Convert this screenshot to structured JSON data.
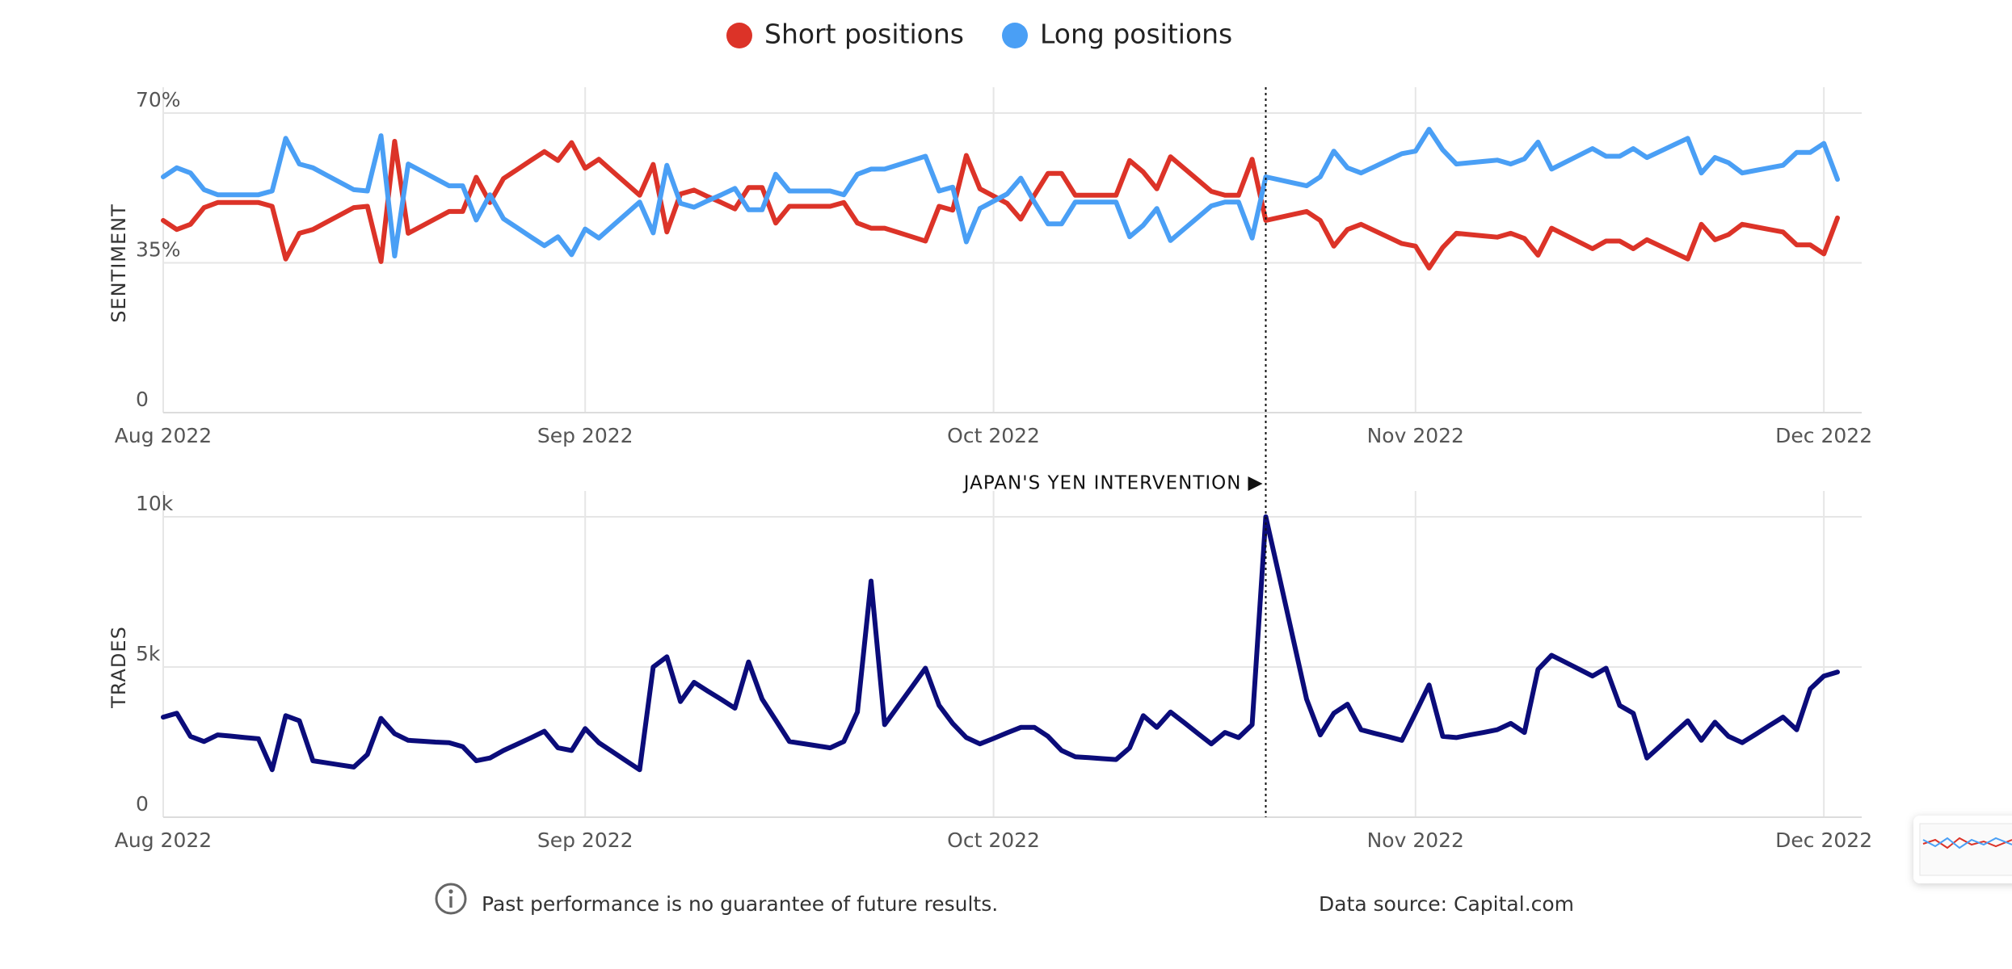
{
  "chart_data": [
    {
      "type": "line",
      "y_label": "SENTIMENT",
      "grid": true,
      "legend": "top",
      "categories": [
        "Aug 2022",
        null,
        null,
        null,
        null,
        null,
        null,
        null,
        null,
        null,
        null,
        null,
        null,
        null,
        null,
        null,
        null,
        null,
        null,
        null,
        null,
        null,
        null,
        null,
        null,
        null,
        null,
        null,
        null,
        null,
        null,
        "Sep 2022",
        null,
        null,
        null,
        null,
        null,
        null,
        null,
        null,
        null,
        null,
        null,
        null,
        null,
        null,
        null,
        null,
        null,
        null,
        null,
        null,
        null,
        null,
        null,
        null,
        null,
        null,
        null,
        null,
        null,
        "Oct 2022",
        null,
        null,
        null,
        null,
        null,
        null,
        null,
        null,
        null,
        null,
        null,
        null,
        null,
        null,
        null,
        null,
        null,
        null,
        null,
        null,
        null,
        null,
        null,
        null,
        null,
        null,
        null,
        null,
        null,
        null,
        "Nov 2022",
        null,
        null,
        null,
        null,
        null,
        null,
        null,
        null,
        null,
        null,
        null,
        null,
        null,
        null,
        null,
        null,
        null,
        null,
        null,
        null,
        null,
        null,
        null,
        null,
        null,
        null,
        null,
        null,
        null,
        "Dec 2022",
        null
      ],
      "series": [
        {
          "name": "Short positions",
          "color": "#dc3328",
          "values": [
            44.9,
            42.8,
            44.0,
            47.9,
            49.1,
            49.1,
            49.1,
            49.1,
            48.2,
            35.9,
            41.9,
            42.8,
            44.5,
            46.2,
            47.9,
            48.2,
            35.3,
            63.4,
            41.9,
            43.6,
            45.3,
            47.0,
            47.0,
            55.0,
            49.1,
            54.7,
            56.8,
            58.9,
            61.0,
            58.9,
            63.1,
            57.1,
            59.2,
            56.4,
            53.6,
            50.8,
            58.0,
            42.2,
            51.1,
            52.0,
            50.5,
            49.1,
            47.6,
            52.6,
            52.6,
            44.3,
            48.2,
            48.2,
            48.2,
            48.2,
            49.1,
            44.3,
            43.1,
            43.1,
            42.1,
            41.1,
            40.1,
            48.2,
            47.3,
            60.1,
            52.3,
            50.6,
            48.9,
            45.2,
            50.8,
            55.9,
            55.9,
            50.8,
            50.8,
            50.8,
            50.8,
            58.9,
            56.2,
            52.3,
            59.8,
            57.1,
            54.4,
            51.7,
            50.8,
            50.8,
            59.2,
            44.9,
            45.6,
            46.3,
            47.0,
            44.9,
            38.9,
            42.8,
            44.0,
            42.5,
            41.0,
            39.5,
            38.9,
            33.8,
            38.6,
            41.9,
            41.6,
            41.3,
            41.0,
            41.9,
            40.7,
            36.8,
            43.1,
            41.5,
            39.9,
            38.3,
            40.1,
            40.1,
            38.3,
            40.4,
            38.9,
            37.4,
            35.9,
            44.0,
            40.4,
            41.6,
            44.0,
            43.4,
            42.8,
            42.2,
            39.2,
            39.2,
            37.1,
            45.5
          ]
        },
        {
          "name": "Long positions",
          "color": "#4a9ff5",
          "values": [
            55.1,
            57.2,
            56.0,
            52.1,
            50.9,
            50.9,
            50.9,
            50.9,
            51.8,
            64.1,
            58.1,
            57.2,
            55.5,
            53.8,
            52.1,
            51.8,
            64.7,
            36.6,
            58.1,
            56.4,
            54.7,
            53.0,
            53.0,
            45.0,
            50.9,
            45.3,
            43.2,
            41.1,
            39.0,
            41.1,
            36.9,
            42.9,
            40.8,
            43.6,
            46.4,
            49.2,
            42.0,
            57.8,
            48.9,
            48.0,
            49.5,
            50.9,
            52.4,
            47.4,
            47.4,
            55.7,
            51.8,
            51.8,
            51.8,
            51.8,
            50.9,
            55.7,
            56.9,
            56.9,
            57.9,
            58.9,
            59.9,
            51.8,
            52.7,
            39.9,
            47.7,
            49.4,
            51.1,
            54.8,
            49.2,
            44.1,
            44.1,
            49.2,
            49.2,
            49.2,
            49.2,
            41.1,
            43.8,
            47.7,
            40.2,
            42.9,
            45.6,
            48.3,
            49.2,
            49.2,
            40.8,
            55.1,
            54.4,
            53.7,
            53.0,
            55.1,
            61.1,
            57.2,
            56.0,
            57.5,
            59.0,
            60.5,
            61.1,
            66.2,
            61.4,
            58.1,
            58.4,
            58.7,
            59.0,
            58.1,
            59.3,
            63.2,
            56.9,
            58.5,
            60.1,
            61.7,
            59.9,
            59.9,
            61.7,
            59.6,
            61.1,
            62.6,
            64.1,
            56.0,
            59.6,
            58.4,
            56.0,
            56.6,
            57.2,
            57.8,
            60.8,
            60.8,
            62.9,
            54.5
          ]
        }
      ],
      "ylim": [
        0,
        70
      ],
      "yticks": [
        0,
        {
          "value": 35,
          "label": "35%"
        },
        {
          "value": 70,
          "label": "70%"
        }
      ]
    },
    {
      "type": "line",
      "y_label": "TRADES",
      "grid": true,
      "annotation": "JAPAN'S YEN INTERVENTION",
      "categories": [
        "Aug 2022",
        null,
        null,
        null,
        null,
        null,
        null,
        null,
        null,
        null,
        null,
        null,
        null,
        null,
        null,
        null,
        null,
        null,
        null,
        null,
        null,
        null,
        null,
        null,
        null,
        null,
        null,
        null,
        null,
        null,
        null,
        "Sep 2022",
        null,
        null,
        null,
        null,
        null,
        null,
        null,
        null,
        null,
        null,
        null,
        null,
        null,
        null,
        null,
        null,
        null,
        null,
        null,
        null,
        null,
        null,
        null,
        null,
        null,
        null,
        null,
        null,
        null,
        "Oct 2022",
        null,
        null,
        null,
        null,
        null,
        null,
        null,
        null,
        null,
        null,
        null,
        null,
        null,
        null,
        null,
        null,
        null,
        null,
        null,
        null,
        null,
        null,
        null,
        null,
        null,
        null,
        null,
        null,
        null,
        null,
        "Nov 2022",
        null,
        null,
        null,
        null,
        null,
        null,
        null,
        null,
        null,
        null,
        null,
        null,
        null,
        null,
        null,
        null,
        null,
        null,
        null,
        null,
        null,
        null,
        null,
        null,
        null,
        null,
        null,
        null,
        null,
        "Dec 2022",
        null
      ],
      "color": "#0b0c7a",
      "values": [
        3330,
        3460,
        2690,
        2520,
        2740,
        2700,
        2650,
        2610,
        1580,
        3380,
        3210,
        1880,
        1810,
        1740,
        1670,
        2090,
        3290,
        2780,
        2560,
        2530,
        2500,
        2480,
        2350,
        1880,
        1970,
        2220,
        2430,
        2640,
        2860,
        2310,
        2220,
        2950,
        2480,
        2180,
        1880,
        1580,
        5000,
        5340,
        3850,
        4490,
        4200,
        3920,
        3630,
        5170,
        3930,
        3230,
        2520,
        2450,
        2380,
        2310,
        2520,
        3500,
        7860,
        3080,
        3710,
        4330,
        4960,
        3720,
        3120,
        2650,
        2440,
        2620,
        2810,
        2990,
        2990,
        2690,
        2220,
        2010,
        1980,
        1950,
        1920,
        2310,
        3380,
        2990,
        3500,
        3150,
        2790,
        2440,
        2820,
        2650,
        3080,
        10000,
        8000,
        5960,
        3930,
        2740,
        3460,
        3760,
        2910,
        2790,
        2680,
        2560,
        3470,
        4400,
        2690,
        2650,
        2740,
        2820,
        2910,
        3120,
        2820,
        4920,
        5390,
        5160,
        4930,
        4700,
        4960,
        3720,
        3460,
        1970,
        2380,
        2800,
        3210,
        2560,
        3160,
        2690,
        2480,
        2760,
        3050,
        3330,
        2910,
        4270,
        4700,
        4830
      ],
      "ylim": [
        0,
        10000
      ],
      "yticks": [
        0,
        {
          "value": 5000,
          "label": "5k"
        },
        {
          "value": 10000,
          "label": "10k"
        }
      ]
    }
  ],
  "footer": {
    "disclaimer": "Past performance is no guarantee of future results.",
    "source": "Data source: Capital.com"
  }
}
